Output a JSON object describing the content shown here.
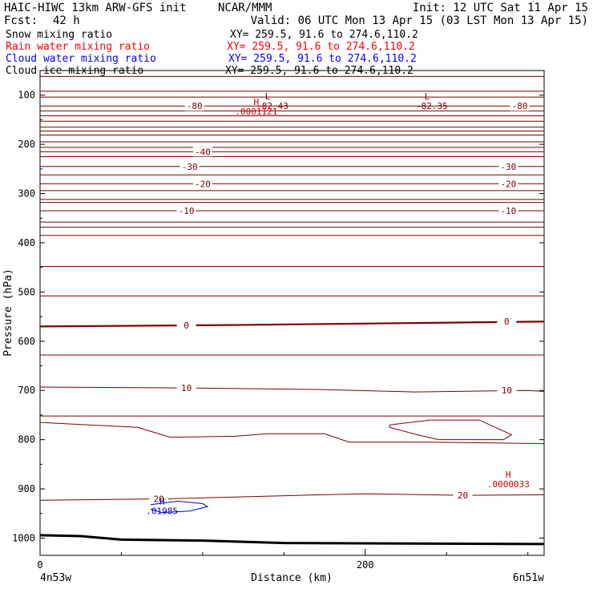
{
  "header": {
    "title_left": "HAIC-HIWC 13km ARW-GFS init",
    "org": "NCAR/MMM",
    "init": "Init: 12 UTC Sat 11 Apr 15",
    "fcst_label": "Fcst:",
    "fcst_value": "42 h",
    "valid": "Valid: 06 UTC Mon 13 Apr 15 (03 LST Mon 13 Apr 15)"
  },
  "fields": [
    {
      "name": "Snow mixing ratio",
      "xy": "XY= 259.5, 91.6 to 274.6,110.2",
      "color": "#000000"
    },
    {
      "name": "Rain water mixing ratio",
      "xy": "XY= 259.5, 91.6 to 274.6,110.2",
      "color": "#ff0000"
    },
    {
      "name": "Cloud water mixing ratio",
      "xy": "XY= 259.5, 91.6 to 274.6,110.2",
      "color": "#0000ff"
    },
    {
      "name": "Cloud ice mixing ratio",
      "xy": "XY= 259.5, 91.6 to 274.6,110.2",
      "color": "#000000"
    }
  ],
  "colors": {
    "contour": "#7b0000",
    "zero_contour": "#7b0000",
    "cloud_water": "#0000cc",
    "extrema": "#cc0000",
    "ground": "#000000",
    "axis": "#000000"
  },
  "chart_data": {
    "type": "line",
    "xlabel": "Distance (km)",
    "ylabel": "Pressure (hPa)",
    "x_ticks": [
      "0",
      "200"
    ],
    "x_tick_values": [
      0,
      200
    ],
    "x_end_labels": [
      "4n53w",
      "6n51w"
    ],
    "xlim": [
      0,
      310
    ],
    "y_ticks": [
      "100",
      "200",
      "300",
      "400",
      "500",
      "600",
      "700",
      "800",
      "900",
      "1000"
    ],
    "y_tick_values": [
      100,
      200,
      300,
      400,
      500,
      600,
      700,
      800,
      900,
      1000
    ],
    "ylim": [
      50,
      1035
    ],
    "temperature_contours": [
      {
        "level": -80,
        "label": "-80",
        "points": [
          [
            0,
            122
          ],
          [
            310,
            122
          ]
        ],
        "labels_at": [
          [
            95,
            122
          ],
          [
            295,
            122
          ]
        ]
      },
      {
        "level": -40,
        "label": "-40",
        "points": [
          [
            0,
            215
          ],
          [
            310,
            215
          ]
        ],
        "labels_at": [
          [
            100,
            215
          ]
        ]
      },
      {
        "level": -30,
        "label": "-30",
        "points": [
          [
            0,
            245
          ],
          [
            310,
            245
          ]
        ],
        "labels_at": [
          [
            92,
            245
          ],
          [
            288,
            245
          ]
        ]
      },
      {
        "level": -20,
        "label": "-20",
        "points": [
          [
            0,
            280
          ],
          [
            310,
            280
          ]
        ],
        "labels_at": [
          [
            100,
            280
          ],
          [
            288,
            280
          ]
        ]
      },
      {
        "level": -10,
        "label": "-10",
        "points": [
          [
            0,
            335
          ],
          [
            310,
            335
          ]
        ],
        "labels_at": [
          [
            90,
            335
          ],
          [
            288,
            335
          ]
        ]
      },
      {
        "level": 0,
        "label": "0",
        "points": [
          [
            0,
            570
          ],
          [
            120,
            567
          ],
          [
            230,
            563
          ],
          [
            310,
            560
          ]
        ],
        "labels_at": [
          [
            90,
            568
          ],
          [
            287,
            560
          ]
        ]
      },
      {
        "level": 10,
        "label": "10",
        "points": [
          [
            0,
            693
          ],
          [
            90,
            695
          ],
          [
            170,
            698
          ],
          [
            230,
            703
          ],
          [
            300,
            700
          ],
          [
            310,
            702
          ]
        ],
        "labels_at": [
          [
            90,
            695
          ],
          [
            287,
            700
          ]
        ]
      },
      {
        "level": 20,
        "label": "20",
        "points": [
          [
            0,
            923
          ],
          [
            80,
            920
          ],
          [
            160,
            913
          ],
          [
            200,
            910
          ],
          [
            260,
            913
          ],
          [
            310,
            912
          ]
        ],
        "labels_at": [
          [
            73,
            920
          ],
          [
            260,
            913
          ]
        ]
      }
    ],
    "extra_isotherms_hpa": [
      62,
      92,
      104,
      132,
      142,
      153,
      165,
      173,
      181,
      195,
      206,
      225,
      262,
      294,
      312,
      318,
      358,
      368,
      385,
      448,
      508,
      628,
      752
    ],
    "features": [
      {
        "label": "L",
        "value": "-82.43",
        "x": 140,
        "p": 112
      },
      {
        "label": "L",
        "value": "-82.35",
        "x": 238,
        "p": 112
      },
      {
        "label": "H",
        "value": ".0001121",
        "x": 133,
        "p": 123
      },
      {
        "label": "H",
        "value": ".0000033",
        "x": 288,
        "p": 880
      },
      {
        "label": "H",
        "value": ".01985",
        "x": 75,
        "p": 935
      }
    ],
    "cloud_water_contour": {
      "value": ".01985"
    },
    "terrain_hpa": [
      [
        0,
        994
      ],
      [
        25,
        996
      ],
      [
        50,
        1003
      ],
      [
        100,
        1005
      ],
      [
        150,
        1010
      ],
      [
        310,
        1012
      ]
    ]
  }
}
